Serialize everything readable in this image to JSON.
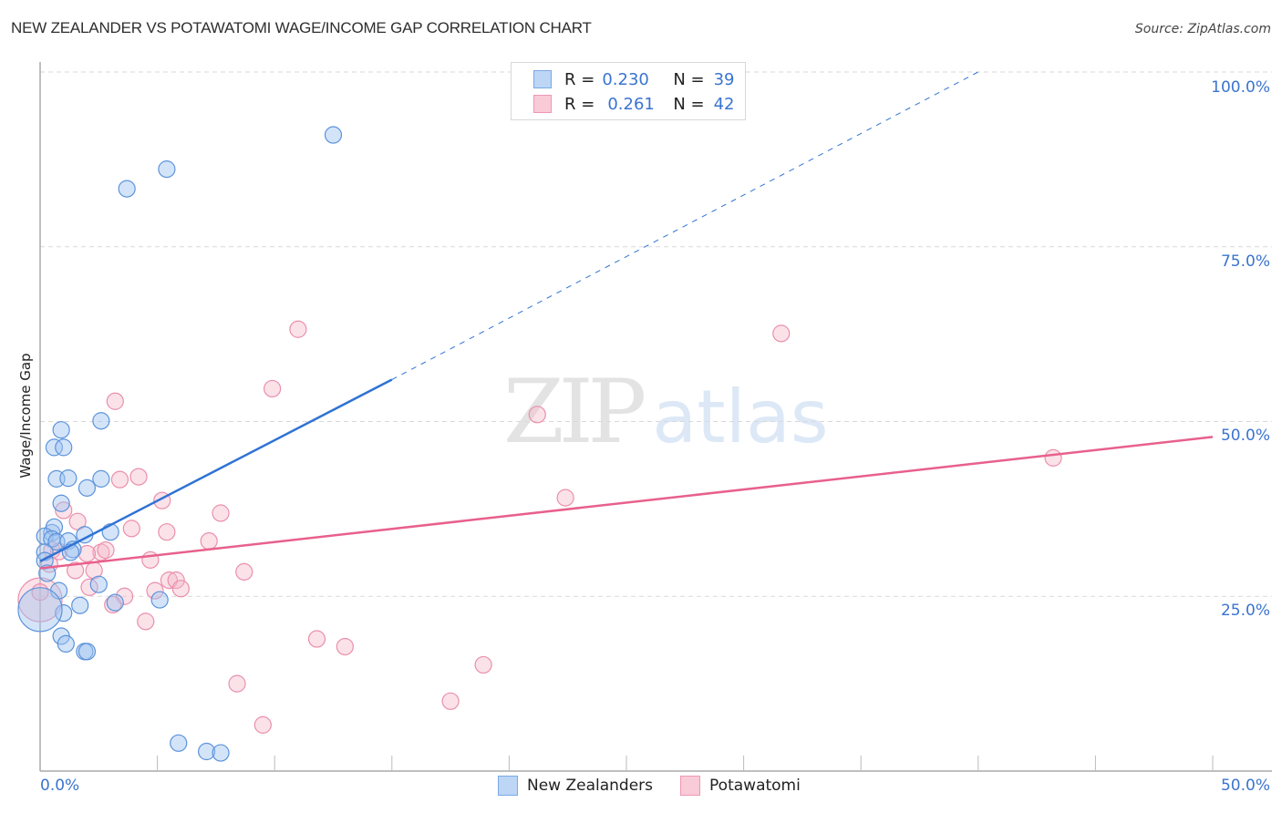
{
  "header": {
    "title": "NEW ZEALANDER VS POTAWATOMI WAGE/INCOME GAP CORRELATION CHART",
    "source": "Source: ZipAtlas.com"
  },
  "axes": {
    "y_label": "Wage/Income Gap",
    "y_ticks": [
      "100.0%",
      "75.0%",
      "50.0%",
      "25.0%"
    ],
    "x_ticks": [
      "0.0%",
      "50.0%"
    ]
  },
  "legend": {
    "rows": [
      {
        "r_label": "R =",
        "r_value": "0.230",
        "n_label": "N =",
        "n_value": "39",
        "color": "#a8c8f0"
      },
      {
        "r_label": "R =",
        "r_value": "0.261",
        "n_label": "N =",
        "n_value": "42",
        "color": "#f6b6c8"
      }
    ]
  },
  "bottom_legend": {
    "series": [
      {
        "label": "New Zealanders",
        "color": "#a8c8f0"
      },
      {
        "label": "Potawatomi",
        "color": "#f6b6c8"
      }
    ]
  },
  "watermark": {
    "zip": "ZIP",
    "atlas": "atlas"
  },
  "colors": {
    "blue_line": "#2f73d4",
    "pink_line": "#e8608c",
    "blue_fill": "rgba(160,196,240,0.45)",
    "blue_stroke": "#5b93dc",
    "pink_fill": "rgba(246,182,200,0.4)",
    "pink_stroke": "#ea8fac",
    "tick_text": "#3a74d0",
    "grid": "#d9d9d9"
  },
  "chart_data": {
    "type": "scatter",
    "title": "NEW ZEALANDER VS POTAWATOMI WAGE/INCOME GAP CORRELATION CHART",
    "xlabel": "",
    "ylabel": "Wage/Income Gap",
    "xlim": [
      0,
      50
    ],
    "ylim": [
      0,
      100
    ],
    "x_unit": "%",
    "y_unit": "%",
    "grid": {
      "horizontal": true,
      "style": "dashed",
      "y_values": [
        25,
        50,
        75,
        100
      ]
    },
    "legend_position": "top-center",
    "series": [
      {
        "name": "New Zealanders",
        "color": "#a8c8f0",
        "R": 0.23,
        "N": 39,
        "trend": {
          "x0": 0,
          "y0": 30.0,
          "x1": 15.0,
          "y1": 56.0,
          "dashed_extension_to": {
            "x": 40.0,
            "y": 100.0
          }
        },
        "points": [
          [
            12.5,
            91.0
          ],
          [
            5.4,
            86.1
          ],
          [
            3.7,
            83.3
          ],
          [
            2.6,
            50.1
          ],
          [
            0.9,
            48.8
          ],
          [
            0.6,
            46.3
          ],
          [
            1.0,
            46.3
          ],
          [
            0.7,
            41.8
          ],
          [
            1.2,
            41.9
          ],
          [
            2.6,
            41.8
          ],
          [
            2.0,
            40.5
          ],
          [
            0.9,
            38.3
          ],
          [
            0.5,
            34.1
          ],
          [
            0.6,
            34.9
          ],
          [
            0.2,
            33.6
          ],
          [
            0.5,
            33.2
          ],
          [
            0.7,
            32.8
          ],
          [
            3.0,
            34.2
          ],
          [
            1.9,
            33.8
          ],
          [
            1.2,
            32.9
          ],
          [
            1.4,
            31.7
          ],
          [
            1.3,
            31.3
          ],
          [
            0.2,
            31.3
          ],
          [
            0.2,
            30.1
          ],
          [
            2.5,
            26.7
          ],
          [
            0.3,
            28.3
          ],
          [
            0.8,
            25.8
          ],
          [
            5.1,
            24.5
          ],
          [
            1.7,
            23.7
          ],
          [
            3.2,
            24.1
          ],
          [
            1.0,
            22.6
          ],
          [
            0.9,
            19.3
          ],
          [
            1.1,
            18.2
          ],
          [
            1.9,
            17.1
          ],
          [
            2.0,
            17.1
          ],
          [
            5.9,
            4.0
          ],
          [
            7.1,
            2.8
          ],
          [
            7.7,
            2.6
          ],
          [
            0.0,
            23.1
          ]
        ]
      },
      {
        "name": "Potawatomi",
        "color": "#f6b6c8",
        "R": 0.261,
        "N": 42,
        "trend": {
          "x0": 0,
          "y0": 29.0,
          "x1": 50.0,
          "y1": 47.8
        },
        "points": [
          [
            11.0,
            63.2
          ],
          [
            31.6,
            62.6
          ],
          [
            9.9,
            54.7
          ],
          [
            3.2,
            52.9
          ],
          [
            21.2,
            51.0
          ],
          [
            4.2,
            42.1
          ],
          [
            43.2,
            44.8
          ],
          [
            3.4,
            41.7
          ],
          [
            22.4,
            39.1
          ],
          [
            5.2,
            38.7
          ],
          [
            7.7,
            36.9
          ],
          [
            1.0,
            37.3
          ],
          [
            1.6,
            35.7
          ],
          [
            3.9,
            34.7
          ],
          [
            5.4,
            34.2
          ],
          [
            7.2,
            32.9
          ],
          [
            2.6,
            31.3
          ],
          [
            2.8,
            31.6
          ],
          [
            0.5,
            31.6
          ],
          [
            2.0,
            31.1
          ],
          [
            4.7,
            30.2
          ],
          [
            0.4,
            29.6
          ],
          [
            1.5,
            28.7
          ],
          [
            2.3,
            28.7
          ],
          [
            8.7,
            28.5
          ],
          [
            5.5,
            27.3
          ],
          [
            5.8,
            27.3
          ],
          [
            6.0,
            26.1
          ],
          [
            2.1,
            26.3
          ],
          [
            4.9,
            25.8
          ],
          [
            3.6,
            25.0
          ],
          [
            3.1,
            23.8
          ],
          [
            4.5,
            21.4
          ],
          [
            11.8,
            18.9
          ],
          [
            13.0,
            17.8
          ],
          [
            18.9,
            15.2
          ],
          [
            8.4,
            12.5
          ],
          [
            17.5,
            10.0
          ],
          [
            9.5,
            6.6
          ],
          [
            0.0,
            24.5
          ],
          [
            0.8,
            31.4
          ],
          [
            0.0,
            25.6
          ]
        ]
      }
    ]
  }
}
